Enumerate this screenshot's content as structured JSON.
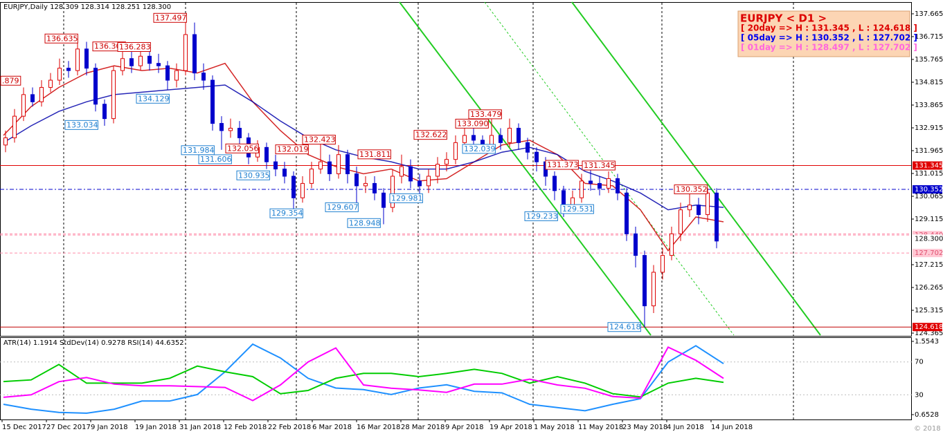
{
  "header": {
    "symbol_line": "EURJPY,Daily  128.309 128.314 128.251 128.300",
    "indicator_line": "ATR(14) 1.1914  StdDev(14) 0.9278  RSI(14) 44.6352",
    "copyright": "© 2018"
  },
  "info_box": {
    "title": "EURJPY < D1 >",
    "lines": [
      "[ 20day => H : 131.345 , L : 124.618 ]",
      "[ 05day => H : 130.352 , L : 127.702 ]",
      "[ 01day => H : 128.497 , L : 127.702 ]"
    ]
  },
  "chart_data": {
    "type": "candlestick",
    "x_labels": [
      "15 Dec 2017",
      "27 Dec 2017",
      "9 Jan 2018",
      "19 Jan 2018",
      "31 Jan 2018",
      "12 Feb 2018",
      "22 Feb 2018",
      "6 Mar 2018",
      "16 Mar 2018",
      "28 Mar 2018",
      "9 Apr 2018",
      "19 Apr 2018",
      "1 May 2018",
      "11 May 2018",
      "23 May 2018",
      "4 Jun 2018",
      "14 Jun 2018"
    ],
    "up_color": "#dd0000",
    "down_color": "#0000cc",
    "ohlc": [
      [
        132.2,
        132.8,
        131.9,
        132.5
      ],
      [
        132.5,
        133.7,
        132.3,
        133.4
      ],
      [
        133.4,
        134.6,
        133.2,
        134.3
      ],
      [
        134.3,
        134.6,
        133.8,
        134.0
      ],
      [
        134.0,
        134.9,
        133.8,
        134.6
      ],
      [
        134.6,
        135.2,
        134.4,
        134.9
      ],
      [
        134.9,
        135.8,
        134.7,
        135.4
      ],
      [
        135.4,
        135.7,
        135.0,
        135.3
      ],
      [
        135.3,
        136.6,
        135.1,
        136.2
      ],
      [
        136.2,
        136.5,
        135.1,
        135.4
      ],
      [
        135.4,
        135.6,
        133.6,
        133.9
      ],
      [
        133.9,
        134.1,
        133.0,
        133.3
      ],
      [
        133.3,
        135.5,
        133.1,
        135.3
      ],
      [
        135.3,
        136.3,
        135.1,
        135.8
      ],
      [
        135.8,
        136.1,
        135.2,
        135.5
      ],
      [
        135.5,
        136.2,
        135.3,
        135.9
      ],
      [
        135.9,
        136.1,
        135.3,
        135.6
      ],
      [
        135.6,
        136.0,
        135.2,
        135.5
      ],
      [
        135.5,
        135.7,
        134.5,
        134.9
      ],
      [
        134.9,
        135.6,
        134.6,
        135.3
      ],
      [
        135.3,
        137.5,
        135.1,
        136.8
      ],
      [
        136.8,
        137.3,
        134.9,
        135.2
      ],
      [
        135.2,
        135.6,
        134.5,
        134.9
      ],
      [
        134.9,
        135.1,
        132.8,
        133.1
      ],
      [
        133.1,
        133.4,
        132.0,
        132.8
      ],
      [
        132.8,
        133.3,
        132.5,
        132.9
      ],
      [
        132.9,
        133.2,
        132.2,
        132.5
      ],
      [
        132.5,
        132.7,
        131.4,
        131.7
      ],
      [
        131.7,
        132.4,
        131.5,
        132.1
      ],
      [
        132.1,
        132.3,
        131.2,
        131.5
      ],
      [
        131.5,
        131.8,
        130.9,
        131.2
      ],
      [
        131.2,
        131.5,
        130.6,
        130.9
      ],
      [
        130.9,
        131.1,
        129.4,
        130.0
      ],
      [
        130.0,
        130.9,
        129.8,
        130.6
      ],
      [
        130.6,
        131.5,
        130.4,
        131.2
      ],
      [
        131.2,
        132.4,
        131.0,
        131.5
      ],
      [
        131.5,
        131.8,
        130.7,
        131.0
      ],
      [
        131.0,
        132.2,
        130.8,
        131.8
      ],
      [
        131.8,
        132.0,
        130.6,
        131.0
      ],
      [
        131.0,
        131.3,
        129.6,
        130.5
      ],
      [
        130.5,
        130.9,
        130.2,
        130.6
      ],
      [
        130.6,
        130.9,
        129.9,
        130.2
      ],
      [
        130.2,
        130.4,
        128.9,
        129.6
      ],
      [
        129.6,
        131.2,
        129.4,
        130.9
      ],
      [
        130.9,
        131.8,
        130.6,
        131.3
      ],
      [
        131.3,
        131.6,
        130.4,
        130.7
      ],
      [
        130.7,
        131.0,
        130.0,
        130.5
      ],
      [
        130.5,
        131.2,
        130.2,
        130.9
      ],
      [
        130.9,
        131.7,
        130.6,
        131.4
      ],
      [
        131.4,
        131.9,
        131.1,
        131.6
      ],
      [
        131.6,
        132.6,
        131.4,
        132.3
      ],
      [
        132.3,
        133.1,
        132.0,
        132.6
      ],
      [
        132.6,
        133.0,
        132.0,
        132.4
      ],
      [
        132.4,
        132.6,
        131.9,
        132.2
      ],
      [
        132.2,
        133.5,
        132.0,
        132.6
      ],
      [
        132.6,
        132.9,
        132.0,
        132.3
      ],
      [
        132.3,
        133.3,
        132.1,
        132.9
      ],
      [
        132.9,
        133.1,
        132.0,
        132.3
      ],
      [
        132.3,
        132.5,
        131.6,
        131.9
      ],
      [
        131.9,
        132.1,
        131.1,
        131.5
      ],
      [
        131.5,
        131.7,
        130.5,
        130.9
      ],
      [
        130.9,
        131.1,
        129.9,
        130.3
      ],
      [
        130.3,
        130.5,
        129.2,
        129.7
      ],
      [
        129.7,
        130.3,
        129.5,
        130.0
      ],
      [
        130.0,
        131.0,
        129.8,
        130.7
      ],
      [
        130.7,
        131.3,
        130.3,
        130.6
      ],
      [
        130.6,
        130.9,
        130.1,
        130.4
      ],
      [
        130.4,
        131.1,
        130.2,
        130.8
      ],
      [
        130.8,
        131.0,
        129.9,
        130.2
      ],
      [
        130.2,
        130.4,
        128.2,
        128.5
      ],
      [
        128.5,
        128.8,
        127.1,
        127.6
      ],
      [
        127.6,
        127.8,
        124.6,
        125.5
      ],
      [
        125.5,
        127.2,
        125.2,
        126.9
      ],
      [
        126.9,
        127.9,
        126.6,
        127.6
      ],
      [
        127.6,
        128.8,
        127.4,
        128.5
      ],
      [
        128.5,
        129.8,
        128.2,
        129.5
      ],
      [
        129.5,
        130.3,
        129.2,
        129.7
      ],
      [
        129.7,
        130.0,
        128.9,
        129.3
      ],
      [
        129.3,
        130.4,
        129.0,
        130.2
      ],
      [
        130.2,
        130.4,
        127.9,
        128.2
      ]
    ],
    "ylim": [
      124.25,
      138.125
    ],
    "yticks": [
      137.665,
      136.715,
      135.765,
      134.815,
      133.865,
      132.915,
      131.965,
      131.015,
      130.065,
      129.115,
      127.215,
      126.265,
      125.315,
      124.365
    ],
    "levels": [
      {
        "value": 131.345,
        "color": "#e00000",
        "style": "solid",
        "show_label": true,
        "label_bg": "#e00000",
        "label_color": "#ffffff"
      },
      {
        "value": 130.352,
        "color": "#0000cc",
        "style": "dashdot",
        "show_label": true,
        "label_bg": "#0000cc",
        "label_color": "#ffffff"
      },
      {
        "value": 128.497,
        "color": "#ff8aa8",
        "style": "dashed",
        "show_label": false,
        "label_bg": "#ffc8d4",
        "label_color": "#e05070"
      },
      {
        "value": 128.449,
        "color": "#ff8aa8",
        "style": "dashed",
        "show_label": true,
        "label_bg": "#ffc8d4",
        "label_color": "#e05070"
      },
      {
        "value": 127.702,
        "color": "#ff8aa8",
        "style": "dashed",
        "show_label": true,
        "label_bg": "#ffc8d4",
        "label_color": "#e05070"
      },
      {
        "value": 124.618,
        "color": "#c00000",
        "style": "solid",
        "show_label": true,
        "label_bg": "#e00000",
        "label_color": "#ffffff"
      }
    ],
    "current_price": {
      "value": 128.3,
      "label": "128.300"
    },
    "high_labels": [
      {
        "value": 134.879,
        "label": ".879"
      },
      136.635,
      136.306,
      136.283,
      137.497,
      132.056,
      132.019,
      132.423,
      131.811,
      132.622,
      {
        "value": 133.09,
        "label": "133.090"
      },
      133.479,
      131.373,
      131.345,
      130.352
    ],
    "low_labels": [
      134.129,
      133.034,
      131.984,
      131.606,
      130.935,
      129.354,
      129.607,
      128.948,
      129.981,
      132.039,
      129.233,
      129.531,
      124.618
    ],
    "ma_series": [
      {
        "color": "#cc0000",
        "values": [
          132.6,
          133.8,
          134.6,
          135.2,
          135.5,
          135.3,
          135.4,
          135.2,
          135.6,
          134.0,
          132.8,
          131.8,
          131.3,
          131.0,
          131.2,
          130.7,
          130.8,
          131.5,
          132.2,
          132.4,
          131.8,
          130.6,
          130.5,
          129.5,
          127.8,
          129.2,
          129.0
        ]
      },
      {
        "color": "#0000aa",
        "values": [
          132.3,
          133.0,
          133.6,
          134.0,
          134.3,
          134.4,
          134.5,
          134.6,
          134.7,
          134.0,
          133.2,
          132.5,
          132.0,
          131.7,
          131.5,
          131.2,
          131.2,
          131.5,
          131.9,
          132.1,
          131.8,
          131.1,
          130.7,
          130.2,
          129.5,
          129.7,
          129.6
        ]
      }
    ],
    "indicator": {
      "ylim": [
        0.593,
        1.605
      ],
      "yticks": [
        1.5543,
        0.6528
      ],
      "rsi_ylim": [
        0,
        100
      ],
      "rsi_ticks": [
        70,
        30
      ],
      "series": [
        {
          "color": "#1e90ff",
          "axis": "y",
          "values": [
            0.78,
            0.72,
            0.68,
            0.67,
            0.72,
            0.82,
            0.82,
            0.9,
            1.18,
            1.52,
            1.35,
            1.1,
            0.98,
            0.96,
            0.9,
            0.98,
            1.02,
            0.94,
            0.92,
            0.78,
            0.74,
            0.7,
            0.78,
            0.85,
            1.3,
            1.5,
            1.28
          ]
        },
        {
          "color": "#00cc00",
          "axis": "y",
          "values": [
            1.06,
            1.08,
            1.27,
            1.04,
            1.04,
            1.04,
            1.1,
            1.25,
            1.18,
            1.12,
            0.91,
            0.95,
            1.1,
            1.16,
            1.16,
            1.12,
            1.16,
            1.21,
            1.16,
            1.04,
            1.12,
            1.04,
            0.91,
            0.87,
            1.04,
            1.1,
            1.05
          ]
        },
        {
          "color": "#ff00ff",
          "axis": "rsi",
          "values": [
            27,
            30,
            46,
            51,
            43,
            41,
            41,
            40,
            39,
            23,
            42,
            70,
            87,
            42,
            38,
            36,
            33,
            43,
            43,
            49,
            42,
            38,
            28,
            26,
            88,
            72,
            50
          ]
        }
      ]
    }
  }
}
